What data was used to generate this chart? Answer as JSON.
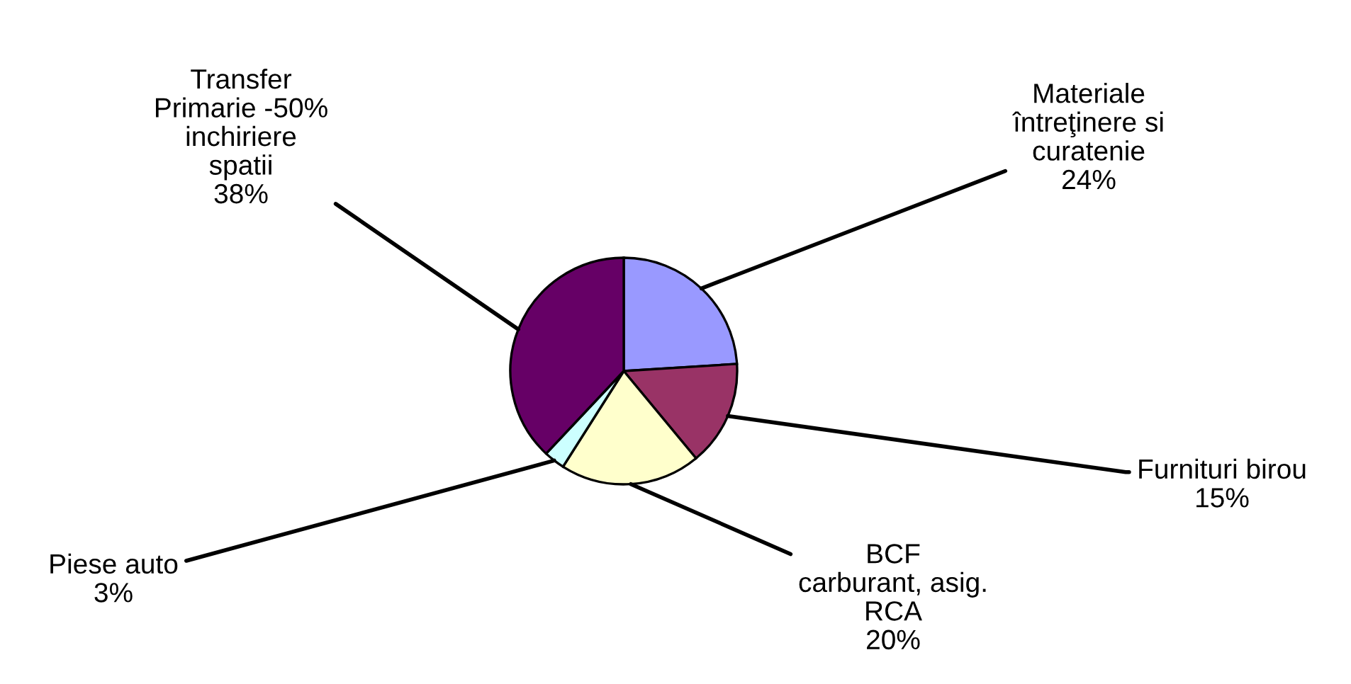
{
  "chart_data": {
    "type": "pie",
    "categories": [
      "Materiale\nîntreţinere si\ncuratenie",
      "Furnituri birou",
      "BCF\ncarburant, asig.\nRCA",
      "Piese auto",
      "Transfer\nPrimarie -50%\ninchiriere\nspatii"
    ],
    "values": [
      24,
      15,
      20,
      3,
      38
    ],
    "value_labels": [
      "24%",
      "15%",
      "20%",
      "3%",
      "38%"
    ],
    "colors": [
      "#9999ff",
      "#993366",
      "#ffffcc",
      "#ccffff",
      "#660066"
    ]
  }
}
